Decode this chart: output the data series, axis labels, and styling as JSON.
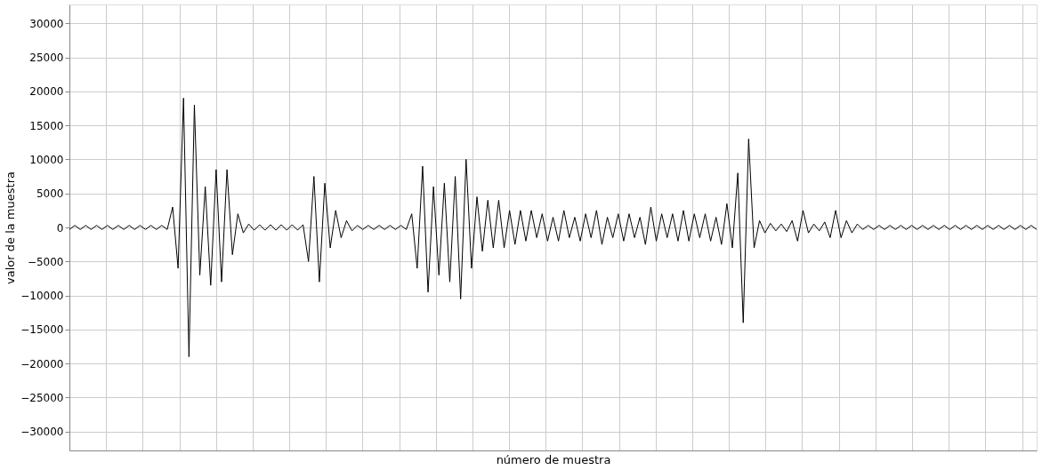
{
  "chart_data": {
    "type": "line",
    "xlabel": "número de muestra",
    "ylabel": "valor de la muestra",
    "categories": [
      null,
      null,
      null,
      null,
      null,
      null,
      null,
      null,
      null,
      null,
      null,
      null,
      null,
      null,
      null,
      null,
      null,
      null,
      null,
      null,
      null,
      null,
      null,
      null,
      null,
      null,
      null,
      null,
      null,
      null,
      null,
      null,
      null,
      null,
      null,
      null,
      null,
      null,
      null,
      null,
      null,
      null,
      null,
      null,
      null,
      null,
      null,
      null,
      null,
      null,
      null,
      null,
      null,
      null,
      null,
      null,
      null,
      null,
      null,
      null,
      null,
      null,
      null,
      null,
      null,
      null,
      null,
      null,
      null,
      null,
      null,
      null,
      null,
      null,
      null,
      null,
      null,
      null,
      null,
      null,
      null,
      null,
      null,
      null,
      null,
      null,
      null,
      null,
      null,
      null,
      null,
      null,
      null,
      null,
      null,
      null,
      null,
      null,
      null,
      null,
      null,
      null,
      null,
      null,
      null,
      null,
      null,
      null,
      null,
      null,
      null,
      null,
      null,
      null,
      null,
      null,
      null,
      null,
      null,
      null,
      null,
      null,
      null,
      null,
      null,
      null,
      null,
      null,
      null,
      null,
      null,
      null,
      null,
      null,
      null,
      null,
      null,
      null,
      null,
      null,
      null,
      null,
      null,
      null,
      null,
      null,
      null,
      null,
      null,
      null,
      null,
      null,
      null,
      null,
      null,
      null,
      null,
      null,
      null,
      null,
      null,
      null,
      null,
      null,
      null,
      null,
      null,
      null,
      null,
      null,
      null,
      null,
      null,
      null,
      null,
      null,
      null,
      null,
      null
    ],
    "series": [
      {
        "color": "#000000",
        "values": [
          -300,
          300,
          -300,
          300,
          -300,
          300,
          -300,
          300,
          -300,
          300,
          -300,
          300,
          -300,
          300,
          -300,
          300,
          -300,
          300,
          -300,
          3000,
          -6000,
          19000,
          -19000,
          18000,
          -7000,
          6000,
          -8500,
          8500,
          -8000,
          8500,
          -4000,
          2000,
          -800,
          500,
          -400,
          400,
          -400,
          400,
          -400,
          400,
          -400,
          400,
          -400,
          400,
          -5000,
          7500,
          -8000,
          6500,
          -3000,
          2500,
          -1500,
          1000,
          -500,
          300,
          -300,
          300,
          -300,
          300,
          -300,
          300,
          -300,
          300,
          -300,
          2000,
          -6000,
          9000,
          -9500,
          6000,
          -7000,
          6500,
          -8000,
          7500,
          -10500,
          10000,
          -6000,
          4500,
          -3500,
          4000,
          -3000,
          4000,
          -3000,
          2500,
          -2500,
          2500,
          -2000,
          2500,
          -1500,
          2000,
          -2000,
          1500,
          -2000,
          2500,
          -1500,
          1500,
          -2000,
          2000,
          -1500,
          2500,
          -2500,
          1500,
          -1500,
          2000,
          -2000,
          2000,
          -1500,
          1500,
          -2500,
          3000,
          -2000,
          2000,
          -1500,
          2000,
          -2000,
          2500,
          -2000,
          2000,
          -1500,
          2000,
          -2000,
          1500,
          -2500,
          3500,
          -3000,
          8000,
          -14000,
          13000,
          -3000,
          1000,
          -800,
          600,
          -500,
          500,
          -600,
          1000,
          -2000,
          2500,
          -800,
          500,
          -500,
          800,
          -1500,
          2500,
          -1500,
          1000,
          -800,
          500,
          -300,
          300,
          -300,
          300,
          -300,
          300,
          -300,
          300,
          -300,
          300,
          -300,
          300,
          -300,
          300,
          -300,
          300,
          -300,
          300,
          -300,
          300,
          -300,
          300,
          -300,
          300,
          -300,
          300,
          -300,
          300,
          -300,
          300,
          -300,
          300,
          -300
        ]
      }
    ],
    "ylim": [
      -32768,
      32768
    ],
    "yticks": [
      -30000,
      -25000,
      -20000,
      -15000,
      -10000,
      -5000,
      0,
      5000,
      10000,
      15000,
      20000,
      25000,
      30000
    ],
    "grid": true,
    "tick_labels": "y"
  }
}
